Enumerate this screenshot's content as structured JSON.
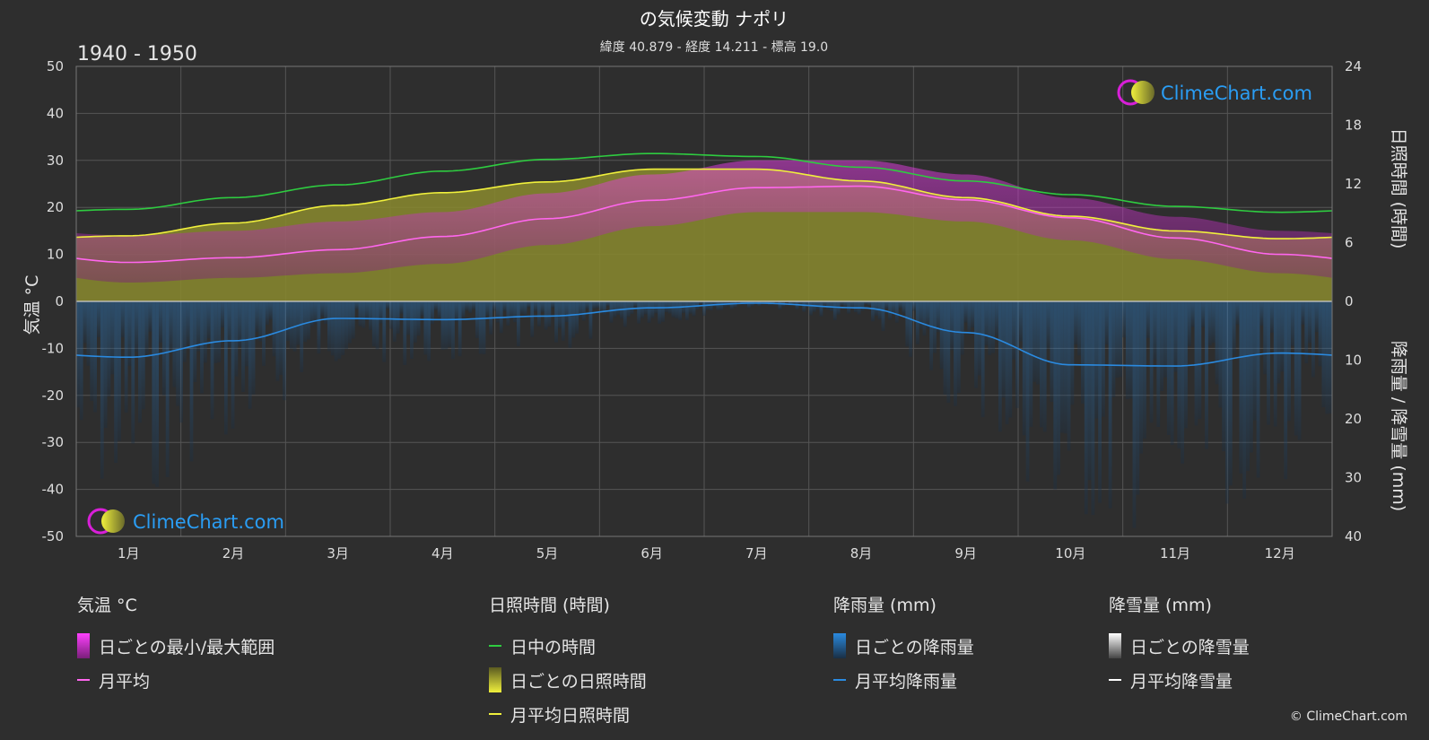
{
  "title": "の気候変動 ナポリ",
  "subtitle": "緯度 40.879 - 経度 14.211 - 標高 19.0",
  "period": "1940 - 1950",
  "brand": "ClimeChart.com",
  "copyright": "© ClimeChart.com",
  "colors": {
    "background": "#2e2e2e",
    "grid": "#555555",
    "daylight": "#2ecc40",
    "sunshine_line": "#f0f03c",
    "sunshine_fill": "#8a8a2e",
    "temp_line": "#ff66ee",
    "temp_range": "#d81fd8",
    "rain_line": "#2a8ae0",
    "rain_bar": "#1f5f8f",
    "brand_text": "#2a9df4"
  },
  "chart_data": {
    "type": "line",
    "months": [
      "1月",
      "2月",
      "3月",
      "4月",
      "5月",
      "6月",
      "7月",
      "8月",
      "9月",
      "10月",
      "11月",
      "12月"
    ],
    "left_axis": {
      "label": "気温 °C",
      "range": [
        -50,
        50
      ],
      "ticks": [
        50,
        40,
        30,
        20,
        10,
        0,
        -10,
        -20,
        -30,
        -40,
        -50
      ]
    },
    "right_axis_top": {
      "label": "日照時間 (時間)",
      "range": [
        0,
        24
      ],
      "ticks": [
        24,
        18,
        12,
        6,
        0
      ]
    },
    "right_axis_bottom": {
      "label": "降雨量 / 降雪量 (mm)",
      "range": [
        0,
        40
      ],
      "ticks": [
        0,
        10,
        20,
        30,
        40
      ]
    },
    "series": [
      {
        "name": "日中の時間",
        "axis": "sunshine",
        "values": [
          9.4,
          10.6,
          11.9,
          13.3,
          14.5,
          15.1,
          14.8,
          13.7,
          12.3,
          10.9,
          9.7,
          9.1
        ]
      },
      {
        "name": "月平均日照時間",
        "axis": "sunshine",
        "values": [
          6.7,
          8.0,
          9.8,
          11.1,
          12.2,
          13.5,
          13.5,
          12.3,
          10.6,
          8.7,
          7.2,
          6.4
        ]
      },
      {
        "name": "月平均",
        "axis": "temperature",
        "values": [
          8.3,
          9.3,
          11.0,
          13.8,
          17.6,
          21.5,
          24.2,
          24.5,
          21.6,
          17.8,
          13.5,
          10.0
        ]
      },
      {
        "name": "月平均降雨量",
        "axis": "precipitation",
        "values": [
          9.5,
          6.7,
          2.9,
          3.1,
          2.5,
          1.1,
          0.3,
          1.1,
          5.3,
          10.8,
          11.0,
          8.8
        ]
      }
    ],
    "daily_temp_range": {
      "min": [
        4,
        5,
        6,
        8,
        12,
        16,
        19,
        19,
        17,
        13,
        9,
        6
      ],
      "max": [
        14,
        15,
        17,
        19,
        23,
        27,
        30,
        30,
        27,
        22,
        18,
        15
      ]
    },
    "grid": true
  },
  "legend": {
    "temp": {
      "header": "気温 °C",
      "range": "日ごとの最小/最大範囲",
      "mean": "月平均"
    },
    "sun": {
      "header": "日照時間 (時間)",
      "daylight": "日中の時間",
      "daily": "日ごとの日照時間",
      "mean": "月平均日照時間"
    },
    "rain": {
      "header": "降雨量 (mm)",
      "daily": "日ごとの降雨量",
      "mean": "月平均降雨量"
    },
    "snow": {
      "header": "降雪量 (mm)",
      "daily": "日ごとの降雪量",
      "mean": "月平均降雪量"
    }
  }
}
